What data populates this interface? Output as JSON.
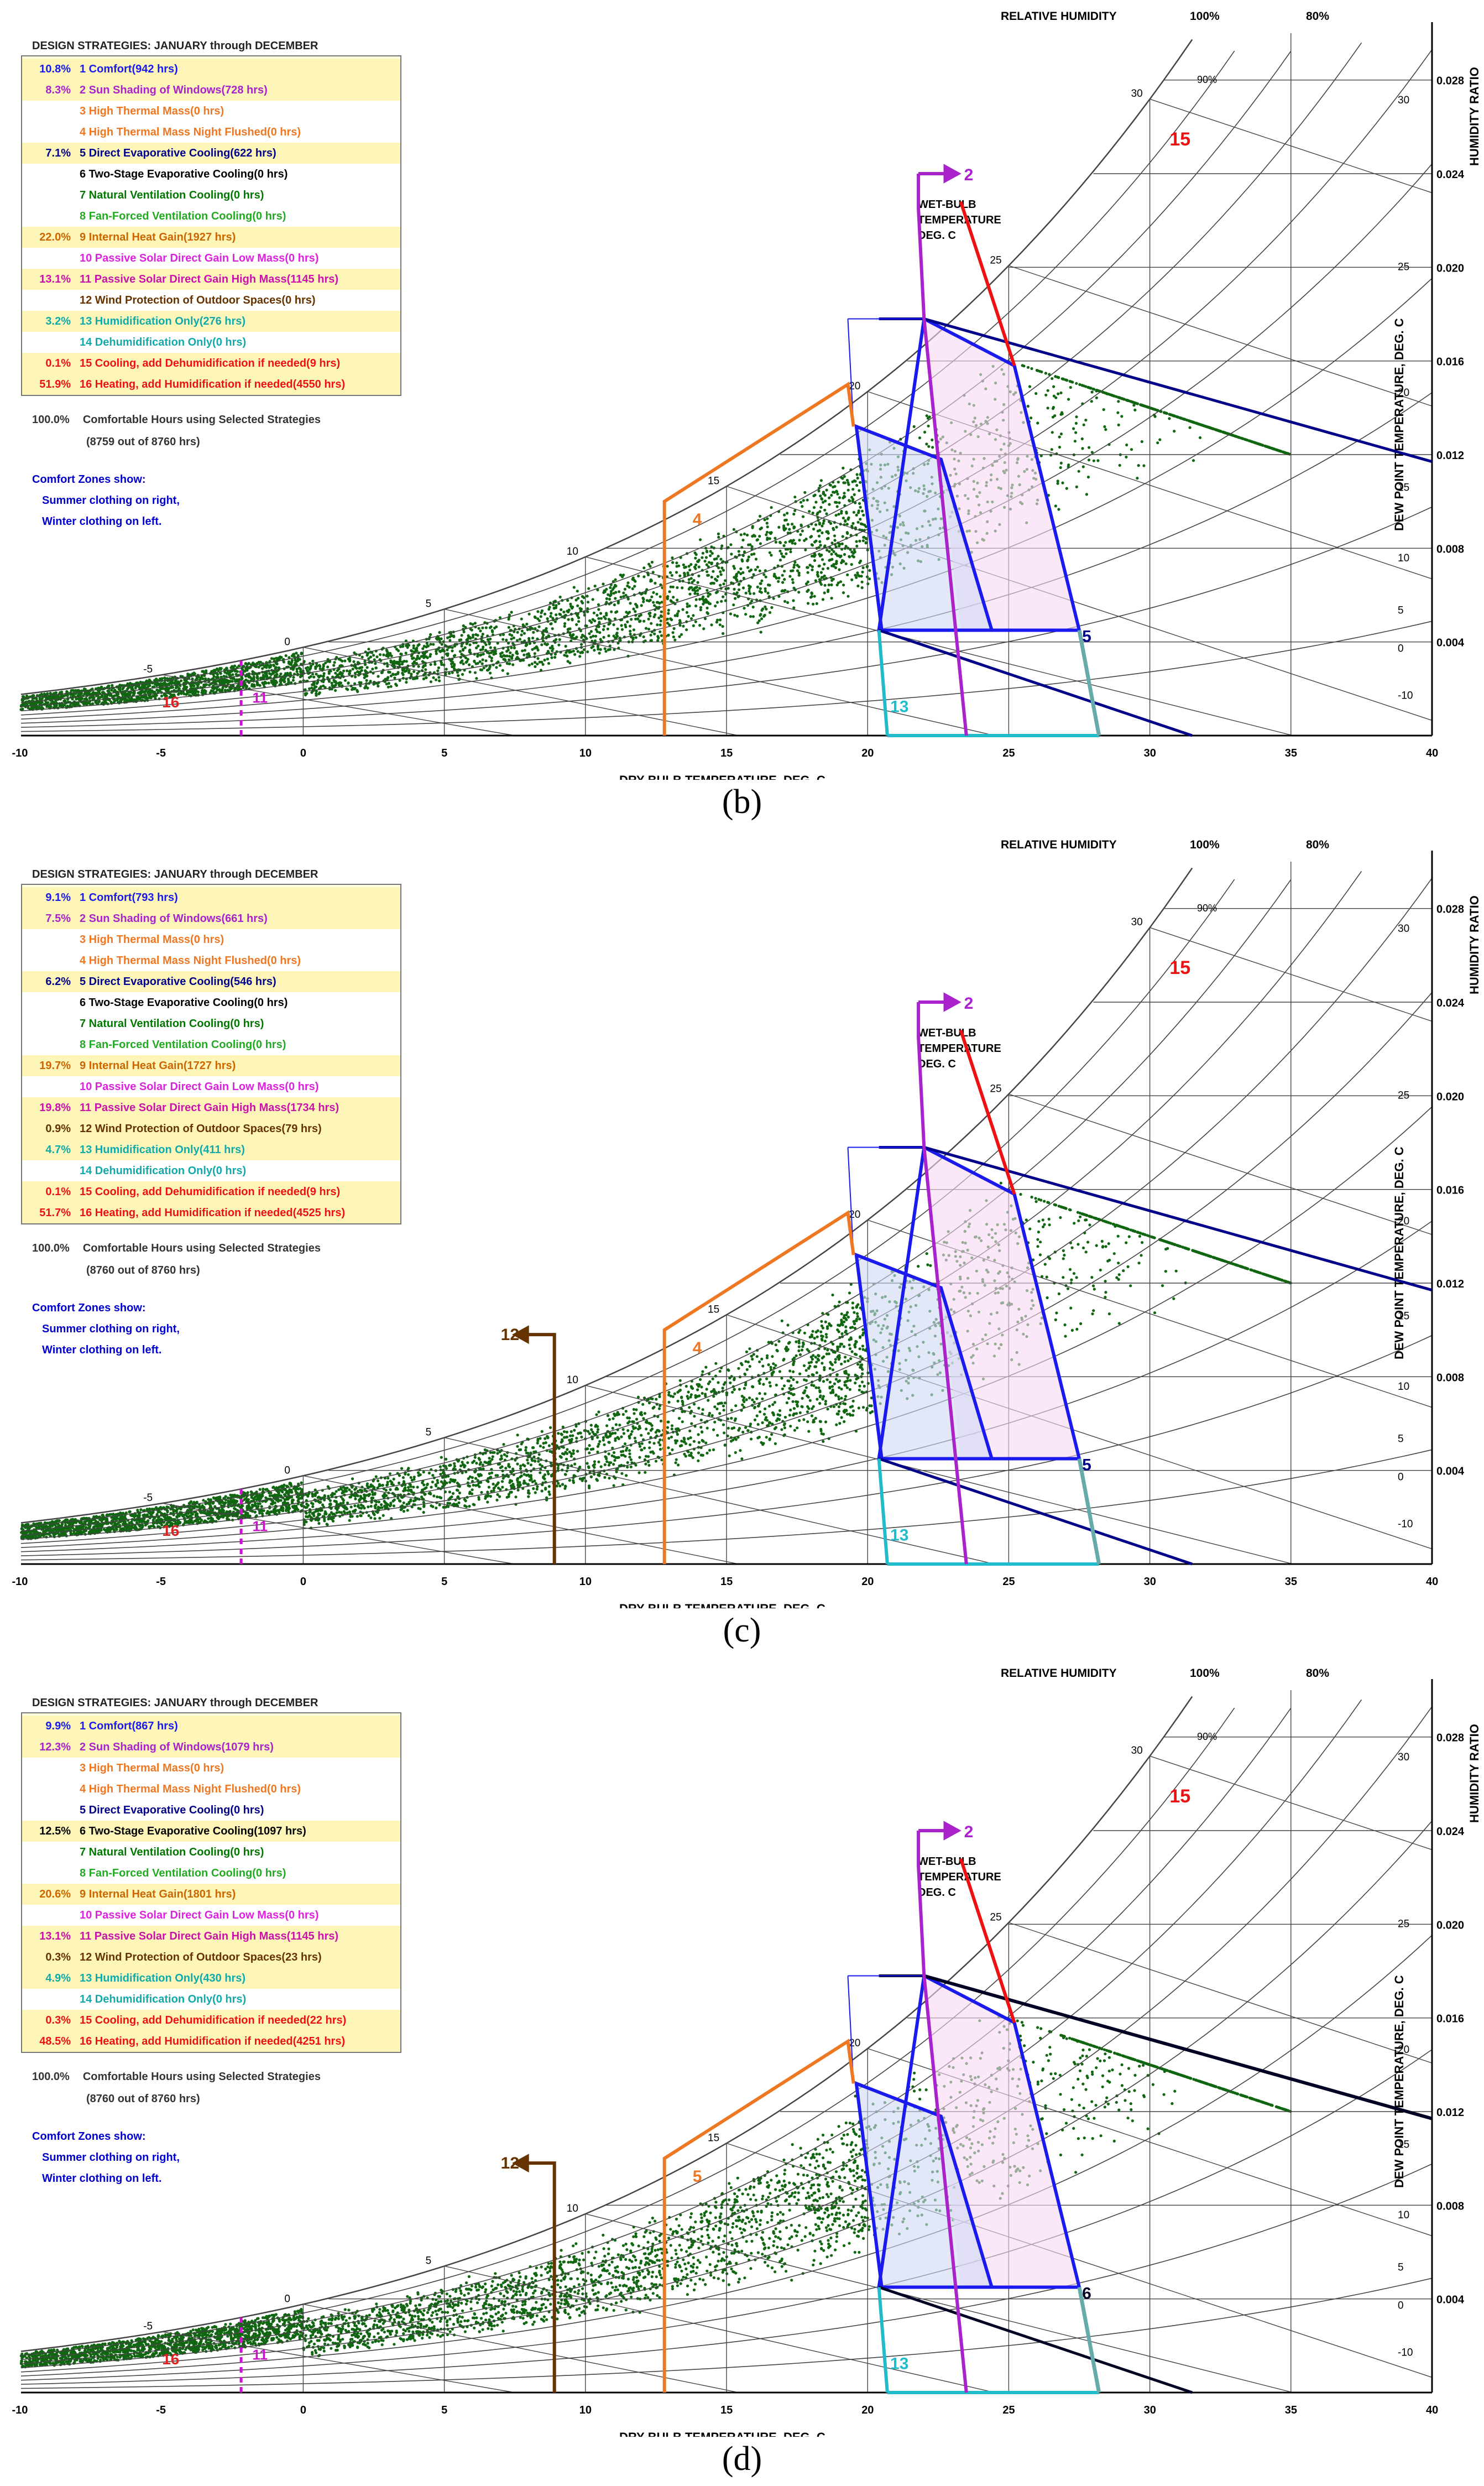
{
  "common": {
    "legend_title": "DESIGN STRATEGIES:  JANUARY through DECEMBER",
    "relative_humidity_label": "RELATIVE HUMIDITY",
    "rh_100": "100%",
    "rh_80": "80%",
    "wet_bulb_label": [
      "WET-BULB",
      "TEMPERATURE",
      "DEG. C"
    ],
    "dew_point_label": "DEW POINT TEMPERATURE, DEG. C",
    "humidity_ratio_label": "HUMIDITY RATIO",
    "x_axis_label": "DRY-BULB TEMPERATURE, DEG. C",
    "comfort_zones_text": [
      "Comfort Zones show:",
      "Summer clothing on right,",
      "Winter clothing on left."
    ],
    "comfortable_label": "Comfortable Hours using Selected Strategies",
    "colors": {
      "comfort": "#1a1aee",
      "thermal_mass": "#ee7722",
      "shading": "#aa22cc",
      "cooling_line": "#ee1111",
      "humidification": "#22bbcc",
      "wind_protection": "#663300",
      "dots": "#116611",
      "evap_line": "#000066",
      "grid": "#444444"
    }
  },
  "chart_data": [
    {
      "type": "scatter",
      "panel_label": "(b)",
      "x_ticks": [
        "-10",
        "-5",
        "0",
        "5",
        "10",
        "15",
        "20",
        "25",
        "30",
        "35",
        "40"
      ],
      "dewpoint_ticks": [
        "30",
        "25",
        "20",
        "15",
        "10",
        "5",
        "0",
        "-10"
      ],
      "humidity_ratio_ticks": [
        "0.028",
        "0.024",
        "0.020",
        "0.016",
        "0.012",
        "0.008",
        "0.004"
      ],
      "wet_bulb_ticks": [
        "-5",
        "0",
        "5",
        "10",
        "15",
        "20",
        "25",
        "30"
      ],
      "xlim": [
        -10,
        40
      ],
      "ylim": [
        0,
        0.03
      ],
      "rh_curve_label": "90%",
      "strategies": [
        {
          "pct": "10.8%",
          "text": "1  Comfort(942 hrs)",
          "color": "#1a1aee",
          "highlight": true
        },
        {
          "pct": "8.3%",
          "text": "2  Sun Shading of Windows(728 hrs)",
          "color": "#aa22cc",
          "highlight": true
        },
        {
          "pct": "",
          "text": "3  High Thermal Mass(0 hrs)",
          "color": "#ee7722",
          "highlight": false
        },
        {
          "pct": "",
          "text": "4  High Thermal Mass Night Flushed(0 hrs)",
          "color": "#ee7722",
          "highlight": false
        },
        {
          "pct": "7.1%",
          "text": "5  Direct Evaporative Cooling(622 hrs)",
          "color": "#000088",
          "highlight": true
        },
        {
          "pct": "",
          "text": "6  Two-Stage Evaporative Cooling(0 hrs)",
          "color": "#000000",
          "highlight": false
        },
        {
          "pct": "",
          "text": "7  Natural Ventilation Cooling(0 hrs)",
          "color": "#007700",
          "highlight": false
        },
        {
          "pct": "",
          "text": "8  Fan-Forced Ventilation Cooling(0 hrs)",
          "color": "#22aa22",
          "highlight": false
        },
        {
          "pct": "22.0%",
          "text": "9  Internal Heat Gain(1927 hrs)",
          "color": "#cc6600",
          "highlight": true
        },
        {
          "pct": "",
          "text": "10  Passive Solar Direct Gain Low Mass(0 hrs)",
          "color": "#dd22dd",
          "highlight": false
        },
        {
          "pct": "13.1%",
          "text": "11  Passive Solar Direct Gain High Mass(1145 hrs)",
          "color": "#cc11aa",
          "highlight": true
        },
        {
          "pct": "",
          "text": "12  Wind Protection of Outdoor Spaces(0 hrs)",
          "color": "#663300",
          "highlight": false
        },
        {
          "pct": "3.2%",
          "text": "13  Humidification Only(276 hrs)",
          "color": "#11aaaa",
          "highlight": true
        },
        {
          "pct": "",
          "text": "14  Dehumidification Only(0 hrs)",
          "color": "#11aaaa",
          "highlight": false
        },
        {
          "pct": "0.1%",
          "text": "15  Cooling, add Dehumidification if needed(9 hrs)",
          "color": "#ee1111",
          "highlight": true
        },
        {
          "pct": "51.9%",
          "text": "16  Heating, add Humidification if needed(4550 hrs)",
          "color": "#ee1111",
          "highlight": true
        }
      ],
      "summary_pct": "100.0%",
      "summary_hours": "(8759 out of 8760 hrs)",
      "zone_labels": {
        "l2": "2",
        "l4": "4",
        "l5": "5",
        "l13": "13",
        "l15": "15",
        "l16": "16",
        "l11": "11"
      },
      "show_wind_protection": false,
      "evap_label": "5",
      "evap_color": "#000088",
      "two_stage": false
    },
    {
      "type": "scatter",
      "panel_label": "(c)",
      "x_ticks": [
        "-10",
        "-5",
        "0",
        "5",
        "10",
        "15",
        "20",
        "25",
        "30",
        "35",
        "40"
      ],
      "dewpoint_ticks": [
        "30",
        "25",
        "20",
        "15",
        "10",
        "5",
        "0",
        "-10"
      ],
      "humidity_ratio_ticks": [
        "0.028",
        "0.024",
        "0.020",
        "0.016",
        "0.012",
        "0.008",
        "0.004"
      ],
      "wet_bulb_ticks": [
        "-5",
        "0",
        "5",
        "10",
        "15",
        "20",
        "25",
        "30"
      ],
      "xlim": [
        -10,
        40
      ],
      "ylim": [
        0,
        0.03
      ],
      "rh_curve_label": "90%",
      "strategies": [
        {
          "pct": "9.1%",
          "text": "1  Comfort(793 hrs)",
          "color": "#1a1aee",
          "highlight": true
        },
        {
          "pct": "7.5%",
          "text": "2  Sun Shading of Windows(661 hrs)",
          "color": "#aa22cc",
          "highlight": true
        },
        {
          "pct": "",
          "text": "3  High Thermal Mass(0 hrs)",
          "color": "#ee7722",
          "highlight": false
        },
        {
          "pct": "",
          "text": "4  High Thermal Mass Night Flushed(0 hrs)",
          "color": "#ee7722",
          "highlight": false
        },
        {
          "pct": "6.2%",
          "text": "5  Direct Evaporative Cooling(546 hrs)",
          "color": "#000088",
          "highlight": true
        },
        {
          "pct": "",
          "text": "6  Two-Stage Evaporative Cooling(0 hrs)",
          "color": "#000000",
          "highlight": false
        },
        {
          "pct": "",
          "text": "7  Natural Ventilation Cooling(0 hrs)",
          "color": "#007700",
          "highlight": false
        },
        {
          "pct": "",
          "text": "8  Fan-Forced Ventilation Cooling(0 hrs)",
          "color": "#22aa22",
          "highlight": false
        },
        {
          "pct": "19.7%",
          "text": "9  Internal Heat Gain(1727 hrs)",
          "color": "#cc6600",
          "highlight": true
        },
        {
          "pct": "",
          "text": "10  Passive Solar Direct Gain Low Mass(0 hrs)",
          "color": "#dd22dd",
          "highlight": false
        },
        {
          "pct": "19.8%",
          "text": "11  Passive Solar Direct Gain High Mass(1734 hrs)",
          "color": "#cc11aa",
          "highlight": true
        },
        {
          "pct": "0.9%",
          "text": "12  Wind Protection of Outdoor Spaces(79 hrs)",
          "color": "#663300",
          "highlight": true
        },
        {
          "pct": "4.7%",
          "text": "13  Humidification Only(411 hrs)",
          "color": "#11aaaa",
          "highlight": true
        },
        {
          "pct": "",
          "text": "14  Dehumidification Only(0 hrs)",
          "color": "#11aaaa",
          "highlight": false
        },
        {
          "pct": "0.1%",
          "text": "15  Cooling, add Dehumidification if needed(9 hrs)",
          "color": "#ee1111",
          "highlight": true
        },
        {
          "pct": "51.7%",
          "text": "16  Heating, add Humidification if needed(4525 hrs)",
          "color": "#ee1111",
          "highlight": true
        }
      ],
      "summary_pct": "100.0%",
      "summary_hours": "(8760 out of 8760 hrs)",
      "zone_labels": {
        "l2": "2",
        "l4": "4",
        "l5": "5",
        "l13": "13",
        "l15": "15",
        "l16": "16",
        "l11": "11",
        "l12": "12"
      },
      "show_wind_protection": true,
      "evap_label": "5",
      "evap_color": "#000088",
      "two_stage": false
    },
    {
      "type": "scatter",
      "panel_label": "(d)",
      "x_ticks": [
        "-10",
        "-5",
        "0",
        "5",
        "10",
        "15",
        "20",
        "25",
        "30",
        "35",
        "40"
      ],
      "dewpoint_ticks": [
        "30",
        "25",
        "20",
        "15",
        "10",
        "5",
        "0",
        "-10"
      ],
      "humidity_ratio_ticks": [
        "0.028",
        "0.024",
        "0.020",
        "0.016",
        "0.012",
        "0.008",
        "0.004"
      ],
      "wet_bulb_ticks": [
        "-5",
        "0",
        "5",
        "10",
        "15",
        "20",
        "25",
        "30"
      ],
      "xlim": [
        -10,
        40
      ],
      "ylim": [
        0,
        0.03
      ],
      "rh_curve_label": "90%",
      "strategies": [
        {
          "pct": "9.9%",
          "text": "1  Comfort(867 hrs)",
          "color": "#1a1aee",
          "highlight": true
        },
        {
          "pct": "12.3%",
          "text": "2  Sun Shading of Windows(1079 hrs)",
          "color": "#aa22cc",
          "highlight": true
        },
        {
          "pct": "",
          "text": "3  High Thermal Mass(0 hrs)",
          "color": "#ee7722",
          "highlight": false
        },
        {
          "pct": "",
          "text": "4  High Thermal Mass Night Flushed(0 hrs)",
          "color": "#ee7722",
          "highlight": false
        },
        {
          "pct": "",
          "text": "5  Direct Evaporative Cooling(0 hrs)",
          "color": "#000088",
          "highlight": false
        },
        {
          "pct": "12.5%",
          "text": "6  Two-Stage Evaporative Cooling(1097 hrs)",
          "color": "#000000",
          "highlight": true
        },
        {
          "pct": "",
          "text": "7  Natural Ventilation Cooling(0 hrs)",
          "color": "#007700",
          "highlight": false
        },
        {
          "pct": "",
          "text": "8  Fan-Forced Ventilation Cooling(0 hrs)",
          "color": "#22aa22",
          "highlight": false
        },
        {
          "pct": "20.6%",
          "text": "9  Internal Heat Gain(1801 hrs)",
          "color": "#cc6600",
          "highlight": true
        },
        {
          "pct": "",
          "text": "10  Passive Solar Direct Gain Low Mass(0 hrs)",
          "color": "#dd22dd",
          "highlight": false
        },
        {
          "pct": "13.1%",
          "text": "11  Passive Solar Direct Gain High Mass(1145 hrs)",
          "color": "#cc11aa",
          "highlight": true
        },
        {
          "pct": "0.3%",
          "text": "12  Wind Protection of Outdoor Spaces(23 hrs)",
          "color": "#663300",
          "highlight": true
        },
        {
          "pct": "4.9%",
          "text": "13  Humidification Only(430 hrs)",
          "color": "#11aaaa",
          "highlight": true
        },
        {
          "pct": "",
          "text": "14  Dehumidification Only(0 hrs)",
          "color": "#11aaaa",
          "highlight": false
        },
        {
          "pct": "0.3%",
          "text": "15  Cooling, add Dehumidification if needed(22 hrs)",
          "color": "#ee1111",
          "highlight": true
        },
        {
          "pct": "48.5%",
          "text": "16  Heating, add Humidification if needed(4251 hrs)",
          "color": "#ee1111",
          "highlight": true
        }
      ],
      "summary_pct": "100.0%",
      "summary_hours": "(8760 out of 8760 hrs)",
      "zone_labels": {
        "l2": "2",
        "l4": "5",
        "l5": "6",
        "l13": "13",
        "l15": "15",
        "l16": "16",
        "l11": "11",
        "l12": "12"
      },
      "show_wind_protection": true,
      "evap_label": "6",
      "evap_color": "#000022",
      "two_stage": true
    }
  ]
}
